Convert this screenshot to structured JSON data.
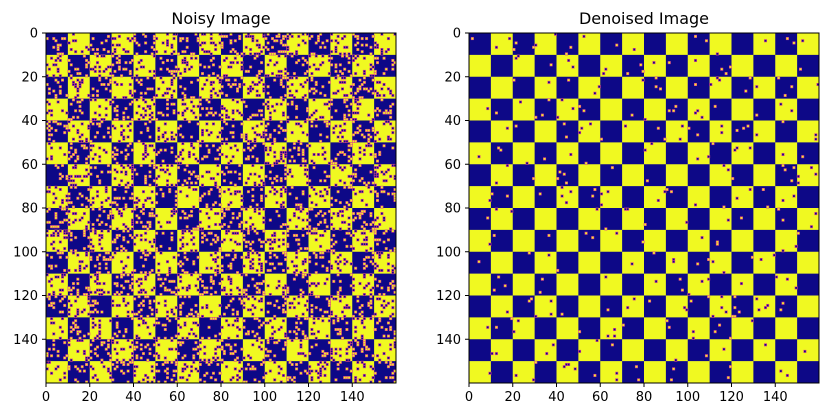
{
  "chart_data": [
    {
      "type": "heatmap",
      "title": "Noisy Image",
      "image_size": [
        160,
        160
      ],
      "pattern": "checkerboard",
      "block_size": 10,
      "xlim": [
        0,
        160
      ],
      "ylim": [
        160,
        0
      ],
      "xticks": [
        0,
        20,
        40,
        60,
        80,
        100,
        120,
        140
      ],
      "yticks": [
        0,
        20,
        40,
        60,
        80,
        100,
        120,
        140
      ],
      "noise_fraction": 0.15,
      "colormap": [
        "#0d0887",
        "#f0f921"
      ],
      "noise_color": "#e0468a",
      "grid": false
    },
    {
      "type": "heatmap",
      "title": "Denoised Image",
      "image_size": [
        160,
        160
      ],
      "pattern": "checkerboard",
      "block_size": 10,
      "xlim": [
        0,
        160
      ],
      "ylim": [
        160,
        0
      ],
      "xticks": [
        0,
        20,
        40,
        60,
        80,
        100,
        120,
        140
      ],
      "yticks": [
        0,
        20,
        40,
        60,
        80,
        100,
        120,
        140
      ],
      "noise_fraction": 0.012,
      "colormap": [
        "#0d0887",
        "#f0f921"
      ],
      "noise_color": "#e0468a",
      "grid": false
    }
  ]
}
